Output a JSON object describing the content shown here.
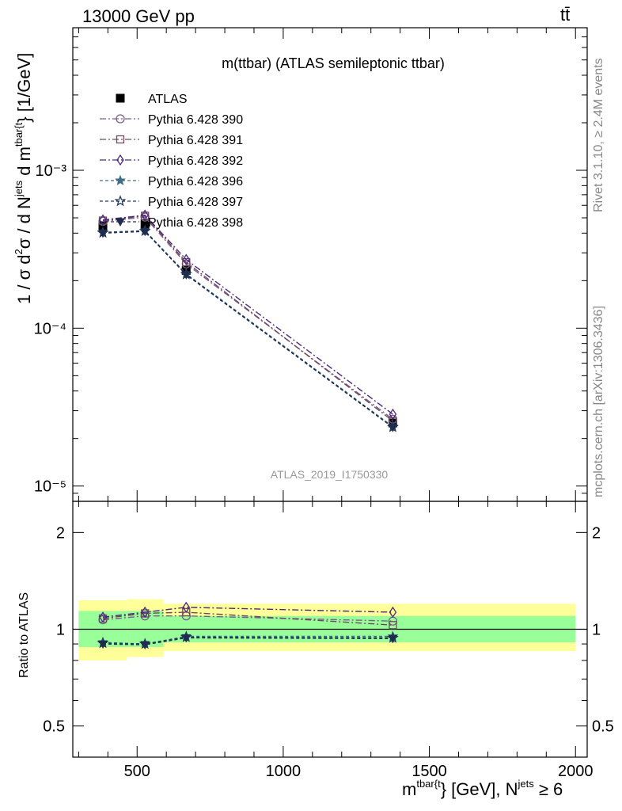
{
  "header": {
    "left": "13000 GeV pp",
    "right": "tt̄"
  },
  "side_labels": {
    "rivet": "Rivet 3.1.10, ≥ 2.4M events",
    "mcplots": "mcplots.cern.ch [arXiv:1306.3436]"
  },
  "colors": {
    "ratio_band_inner": "#99ff99",
    "ratio_band_outer": "#ffff99",
    "s390": "#7a5f8a",
    "s391": "#6e4a5c",
    "s392": "#4a2a7a",
    "s396": "#3f6e86",
    "s397": "#233a5e",
    "s398": "#1f2c4e"
  },
  "chart_data": [
    {
      "type": "line",
      "title": "m(ttbar) (ATLAS semileptonic ttbar)",
      "watermark": "ATLAS_2019_I1750330",
      "ylabel": {
        "pre": "1 / σ d",
        "sup1": "2",
        "mid": "σ /  d N",
        "sup2": "jets",
        "post": " d m",
        "sup3": "tbar{t",
        "end": "} [1/GeV]"
      },
      "yscale": "log",
      "ylim": [
        8e-06,
        0.008
      ],
      "xlim": [
        280,
        2040
      ],
      "yticks": [
        {
          "value": 0.001,
          "label": "10⁻³"
        },
        {
          "value": 0.0001,
          "label": "10⁻⁴"
        },
        {
          "value": 1e-05,
          "label": "10⁻⁵"
        }
      ],
      "legend_position": "top-left",
      "x": [
        383,
        527,
        668,
        1375
      ],
      "series": [
        {
          "key": "atlas",
          "name": "ATLAS",
          "marker": "square",
          "values": [
            0.000445,
            0.000458,
            0.000232,
            2.51e-05
          ]
        },
        {
          "key": "s390",
          "name": "Pythia 6.428 390",
          "marker": "circle-open",
          "dash": "8,3,2,3",
          "values": [
            0.000475,
            0.000505,
            0.000255,
            2.65e-05
          ]
        },
        {
          "key": "s391",
          "name": "Pythia 6.428 391",
          "marker": "square-open",
          "dash": "8,3,2,3",
          "values": [
            0.00048,
            0.000515,
            0.000262,
            2.58e-05
          ]
        },
        {
          "key": "s392",
          "name": "Pythia 6.428 392",
          "marker": "diamond-open",
          "dash": "8,3,2,3",
          "values": [
            0.000485,
            0.00052,
            0.000272,
            2.85e-05
          ]
        },
        {
          "key": "s396",
          "name": "Pythia 6.428 396",
          "marker": "star",
          "dash": "4,3",
          "values": [
            0.000405,
            0.000415,
            0.000221,
            2.38e-05
          ]
        },
        {
          "key": "s397",
          "name": "Pythia 6.428 397",
          "marker": "star-open",
          "dash": "4,3",
          "values": [
            0.000402,
            0.000412,
            0.000219,
            2.36e-05
          ]
        },
        {
          "key": "s398",
          "name": "Pythia 6.428 398",
          "marker": "triangle-down",
          "dash": "4,3",
          "values": [
            0.0004,
            0.00041,
            0.000218,
            2.35e-05
          ]
        }
      ]
    },
    {
      "type": "line",
      "ylabel": "Ratio to ATLAS",
      "yscale": "log",
      "ylim": [
        0.4,
        2.5
      ],
      "xlim": [
        280,
        2040
      ],
      "yticks": [
        {
          "value": 2,
          "label": "2"
        },
        {
          "value": 1,
          "label": "1"
        },
        {
          "value": 0.5,
          "label": "0.5"
        }
      ],
      "xticks": [
        {
          "value": 500,
          "label": "500"
        },
        {
          "value": 1000,
          "label": "1000"
        },
        {
          "value": 1500,
          "label": "1500"
        },
        {
          "value": 2000,
          "label": "2000"
        }
      ],
      "xlabel": {
        "pre": "m",
        "sup1": "tbar{t",
        "mid": "} [GeV], N",
        "sup2": "jets",
        "post": " ≥ 6"
      },
      "bands": [
        {
          "x0": 300,
          "x1": 465,
          "inner": [
            0.88,
            1.14
          ],
          "outer": [
            0.8,
            1.23
          ]
        },
        {
          "x0": 465,
          "x1": 590,
          "inner": [
            0.88,
            1.14
          ],
          "outer": [
            0.82,
            1.24
          ]
        },
        {
          "x0": 590,
          "x1": 2000,
          "inner": [
            0.91,
            1.1
          ],
          "outer": [
            0.855,
            1.2
          ]
        }
      ],
      "x": [
        383,
        527,
        668,
        1375
      ],
      "series": [
        {
          "key": "s390",
          "name": "Pythia 6.428 390",
          "values": [
            1.07,
            1.1,
            1.1,
            1.06
          ]
        },
        {
          "key": "s391",
          "name": "Pythia 6.428 391",
          "values": [
            1.08,
            1.12,
            1.13,
            1.03
          ]
        },
        {
          "key": "s392",
          "name": "Pythia 6.428 392",
          "values": [
            1.09,
            1.13,
            1.17,
            1.13
          ]
        },
        {
          "key": "s396",
          "name": "Pythia 6.428 396",
          "values": [
            0.91,
            0.9,
            0.95,
            0.95
          ]
        },
        {
          "key": "s397",
          "name": "Pythia 6.428 397",
          "values": [
            0.905,
            0.9,
            0.945,
            0.94
          ]
        },
        {
          "key": "s398",
          "name": "Pythia 6.428 398",
          "values": [
            0.9,
            0.895,
            0.94,
            0.935
          ]
        }
      ]
    }
  ]
}
